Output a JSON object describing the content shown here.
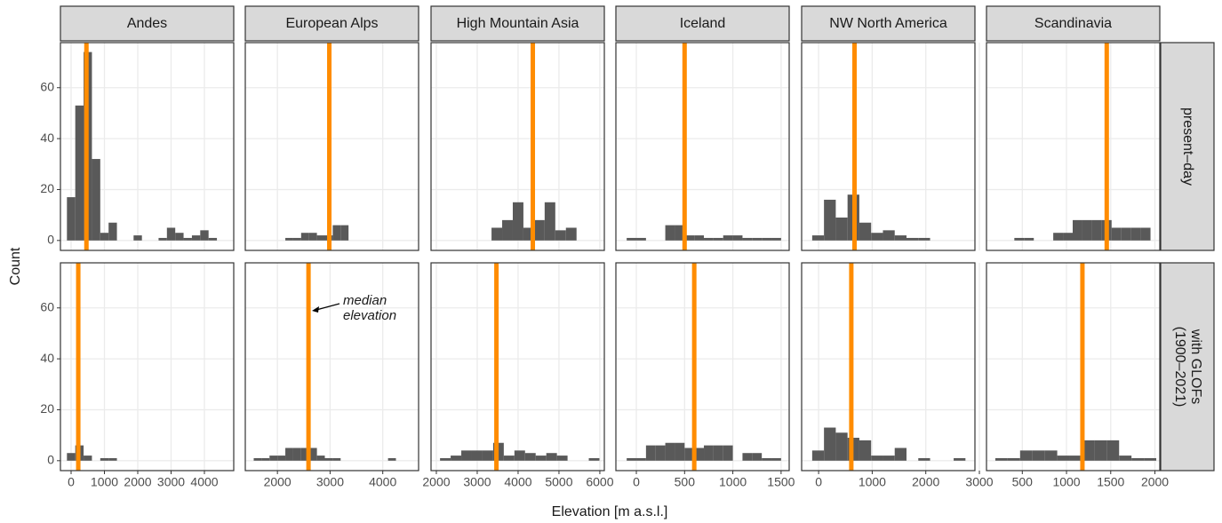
{
  "facets": {
    "columns": [
      "Andes",
      "European Alps",
      "High Mountain Asia",
      "Iceland",
      "NW North America",
      "Scandinavia"
    ],
    "rows": [
      [
        "present–day"
      ],
      [
        "with GLOFs",
        "(1900–2021)"
      ]
    ]
  },
  "x_label": "Elevation [m a.s.l.]",
  "y_label": "Count",
  "annotation": [
    "median",
    "elevation"
  ],
  "chart_data": [
    {
      "type": "histogram",
      "bins": [
        -125,
        125,
        375,
        625,
        875,
        1125,
        1375,
        1625,
        1875,
        2125,
        2375,
        2625,
        2875,
        3125,
        3375,
        3625,
        3875,
        4125,
        4375
      ],
      "values": [
        17,
        53,
        74,
        32,
        3,
        7,
        0,
        0,
        2,
        0,
        0,
        1,
        5,
        3,
        1,
        2,
        4,
        1
      ],
      "median": 460,
      "color": "#595959",
      "median_color": "#ff8c00",
      "xlim": [
        -320,
        4880
      ],
      "xticks": [
        0,
        1000,
        2000,
        3000,
        4000
      ],
      "ylim": [
        -3.9,
        77.7
      ],
      "yticks": [
        0,
        20,
        40,
        60
      ],
      "grid": true
    },
    {
      "type": "histogram",
      "bins": [
        2150,
        2300,
        2450,
        2600,
        2750,
        2900,
        3050,
        3200,
        3350
      ],
      "values": [
        1,
        1,
        3,
        3,
        2,
        2,
        6,
        6
      ],
      "median": 2985,
      "color": "#595959",
      "median_color": "#ff8c00",
      "xlim": [
        1390,
        4680
      ],
      "xticks": [
        2000,
        3000,
        4000
      ],
      "ylim": [
        -3.9,
        77.7
      ],
      "yticks": [
        0,
        20,
        40,
        60
      ],
      "grid": true
    },
    {
      "type": "histogram",
      "bins": [
        3350,
        3610,
        3870,
        4130,
        4390,
        4650,
        4910,
        5170,
        5430
      ],
      "values": [
        5,
        8,
        15,
        5,
        8,
        15,
        4,
        5
      ],
      "median": 4360,
      "color": "#595959",
      "median_color": "#ff8c00",
      "xlim": [
        1870,
        6110
      ],
      "xticks": [
        2000,
        3000,
        4000,
        5000,
        6000
      ],
      "ylim": [
        -3.9,
        77.7
      ],
      "yticks": [
        0,
        20,
        40,
        60
      ],
      "grid": true
    },
    {
      "type": "histogram",
      "bins": [
        -100,
        0,
        100,
        200,
        300,
        400,
        500,
        600,
        700,
        800,
        900,
        1000,
        1100,
        1200,
        1300,
        1400,
        1500
      ],
      "values": [
        1,
        1,
        0,
        0,
        6,
        6,
        2,
        2,
        1,
        1,
        2,
        2,
        1,
        1,
        1,
        1
      ],
      "median": 500,
      "color": "#595959",
      "median_color": "#ff8c00",
      "xlim": [
        -212,
        1584
      ],
      "xticks": [
        0,
        500,
        1000,
        1500
      ],
      "ylim": [
        -3.9,
        77.7
      ],
      "yticks": [
        0,
        20,
        40,
        60
      ],
      "grid": true
    },
    {
      "type": "histogram",
      "bins": [
        -120,
        100,
        320,
        540,
        760,
        980,
        1200,
        1420,
        1640,
        1860,
        2080
      ],
      "values": [
        2,
        16,
        9,
        18,
        7,
        3,
        4,
        2,
        1,
        1
      ],
      "median": 670,
      "color": "#595959",
      "median_color": "#ff8c00",
      "xlim": [
        -317,
        2917
      ],
      "xticks": [
        0,
        1000,
        2000,
        3000
      ],
      "ylim": [
        -3.9,
        77.7
      ],
      "yticks": [
        0,
        20,
        40,
        60
      ],
      "grid": true
    },
    {
      "type": "histogram",
      "bins": [
        410,
        520,
        630,
        740,
        850,
        960,
        1070,
        1180,
        1290,
        1400,
        1510,
        1620,
        1730,
        1840,
        1950
      ],
      "values": [
        1,
        1,
        0,
        0,
        3,
        3,
        8,
        8,
        8,
        8,
        5,
        5,
        5,
        5
      ],
      "median": 1455,
      "color": "#595959",
      "median_color": "#ff8c00",
      "xlim": [
        95,
        2055
      ],
      "xticks": [
        500,
        1000,
        1500,
        2000
      ],
      "ylim": [
        -3.9,
        77.7
      ],
      "yticks": [
        0,
        20,
        40,
        60
      ],
      "grid": true
    },
    {
      "type": "histogram",
      "bins": [
        -125,
        125,
        375,
        625,
        875,
        1125,
        1375
      ],
      "values": [
        3,
        6,
        2,
        0,
        1,
        1
      ],
      "median": 215,
      "color": "#595959",
      "median_color": "#ff8c00",
      "xlim": [
        -320,
        4880
      ],
      "xticks": [
        0,
        1000,
        2000,
        3000,
        4000
      ],
      "ylim": [
        -3.9,
        77.7
      ],
      "yticks": [
        0,
        20,
        40,
        60
      ],
      "grid": true
    },
    {
      "type": "histogram",
      "bins": [
        1550,
        1700,
        1850,
        2000,
        2150,
        2300,
        2450,
        2600,
        2750,
        2900,
        3050,
        3200,
        3350,
        3500,
        3650,
        3800,
        3950,
        4100,
        4250
      ],
      "values": [
        1,
        1,
        2,
        2,
        5,
        5,
        5,
        5,
        2,
        1,
        1,
        0,
        0,
        0,
        0,
        0,
        0,
        1
      ],
      "median": 2590,
      "color": "#595959",
      "median_color": "#ff8c00",
      "xlim": [
        1390,
        4680
      ],
      "xticks": [
        2000,
        3000,
        4000
      ],
      "ylim": [
        -3.9,
        77.7
      ],
      "yticks": [
        0,
        20,
        40,
        60
      ],
      "grid": true
    },
    {
      "type": "histogram",
      "bins": [
        2090,
        2350,
        2610,
        2870,
        3130,
        3390,
        3650,
        3910,
        4170,
        4430,
        4690,
        4950,
        5210,
        5470,
        5730,
        5990
      ],
      "values": [
        1,
        2,
        4,
        4,
        4,
        7,
        2,
        4,
        3,
        2,
        3,
        2,
        0,
        0,
        1
      ],
      "median": 3470,
      "color": "#595959",
      "median_color": "#ff8c00",
      "xlim": [
        1870,
        6110
      ],
      "xticks": [
        2000,
        3000,
        4000,
        5000,
        6000
      ],
      "ylim": [
        -3.9,
        77.7
      ],
      "yticks": [
        0,
        20,
        40,
        60
      ],
      "grid": true
    },
    {
      "type": "histogram",
      "bins": [
        -100,
        0,
        100,
        200,
        300,
        400,
        500,
        600,
        700,
        800,
        900,
        1000,
        1100,
        1200,
        1300,
        1400,
        1500
      ],
      "values": [
        1,
        1,
        6,
        6,
        7,
        7,
        5,
        5,
        6,
        6,
        6,
        0,
        3,
        3,
        1,
        1
      ],
      "median": 600,
      "color": "#595959",
      "median_color": "#ff8c00",
      "xlim": [
        -212,
        1584
      ],
      "xticks": [
        0,
        500,
        1000,
        1500
      ],
      "ylim": [
        -3.9,
        77.7
      ],
      "yticks": [
        0,
        20,
        40,
        60
      ],
      "grid": true
    },
    {
      "type": "histogram",
      "bins": [
        -120,
        100,
        320,
        540,
        760,
        980,
        1200,
        1420,
        1640,
        1860,
        2080,
        2300,
        2520,
        2740
      ],
      "values": [
        4,
        13,
        11,
        9,
        8,
        2,
        2,
        5,
        0,
        1,
        0,
        0,
        1
      ],
      "median": 610,
      "color": "#595959",
      "median_color": "#ff8c00",
      "xlim": [
        -317,
        2917
      ],
      "xticks": [
        0,
        1000,
        2000,
        3000
      ],
      "ylim": [
        -3.9,
        77.7
      ],
      "yticks": [
        0,
        20,
        40,
        60
      ],
      "grid": true
    },
    {
      "type": "histogram",
      "bins": [
        195,
        335,
        475,
        615,
        755,
        895,
        1035,
        1175,
        1315,
        1455,
        1595,
        1735,
        1875,
        2015
      ],
      "values": [
        1,
        1,
        4,
        4,
        4,
        2,
        2,
        8,
        8,
        8,
        2,
        1,
        1
      ],
      "median": 1180,
      "color": "#595959",
      "median_color": "#ff8c00",
      "xlim": [
        95,
        2055
      ],
      "xticks": [
        500,
        1000,
        1500,
        2000
      ],
      "ylim": [
        -3.9,
        77.7
      ],
      "yticks": [
        0,
        20,
        40,
        60
      ],
      "grid": true
    }
  ]
}
